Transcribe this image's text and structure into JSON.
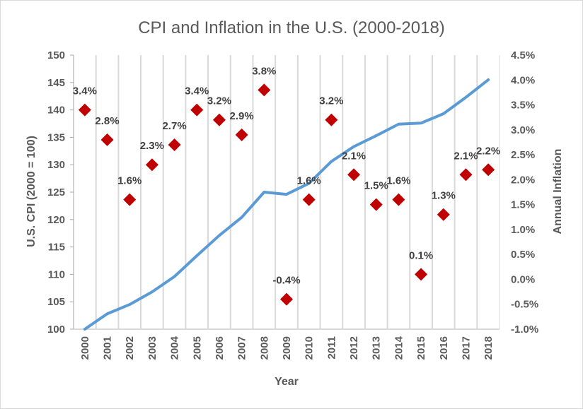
{
  "chart_data": {
    "type": "line+scatter",
    "title": "CPI and Inflation in the U.S. (2000-2018)",
    "xlabel": "Year",
    "ylabel_left": "U.S. CPI (2000 = 100)",
    "ylabel_right": "Annual Inflation",
    "categories": [
      "2000",
      "2001",
      "2002",
      "2003",
      "2004",
      "2005",
      "2006",
      "2007",
      "2008",
      "2009",
      "2010",
      "2011",
      "2012",
      "2013",
      "2014",
      "2015",
      "2016",
      "2017",
      "2018"
    ],
    "ylim_left": [
      100,
      150
    ],
    "yticks_left": [
      "100",
      "105",
      "110",
      "115",
      "120",
      "125",
      "130",
      "135",
      "140",
      "145",
      "150"
    ],
    "ylim_right": [
      -1.0,
      4.5
    ],
    "yticks_right": [
      "-1.0%",
      "-0.5%",
      "0.0%",
      "0.5%",
      "1.0%",
      "1.5%",
      "2.0%",
      "2.5%",
      "3.0%",
      "3.5%",
      "4.0%",
      "4.5%"
    ],
    "grid": "vertical",
    "series": [
      {
        "name": "CPI",
        "type": "line",
        "axis": "left",
        "color": "#5b9bd5",
        "values": [
          100.0,
          102.8,
          104.5,
          106.8,
          109.6,
          113.4,
          117.1,
          120.4,
          125.0,
          124.6,
          126.6,
          130.6,
          133.3,
          135.3,
          137.4,
          137.6,
          139.3,
          142.3,
          145.5
        ]
      },
      {
        "name": "Annual Inflation",
        "type": "scatter",
        "axis": "right",
        "color": "#c00000",
        "marker": "diamond",
        "values": [
          3.4,
          2.8,
          1.6,
          2.3,
          2.7,
          3.4,
          3.2,
          2.9,
          3.8,
          -0.4,
          1.6,
          3.2,
          2.1,
          1.5,
          1.6,
          0.1,
          1.3,
          2.1,
          2.2
        ],
        "labels": [
          "3.4%",
          "2.8%",
          "1.6%",
          "2.3%",
          "2.7%",
          "3.4%",
          "3.2%",
          "2.9%",
          "3.8%",
          "-0.4%",
          "1.6%",
          "3.2%",
          "2.1%",
          "1.5%",
          "1.6%",
          "0.1%",
          "1.3%",
          "2.1%",
          "2.2%"
        ]
      }
    ]
  }
}
